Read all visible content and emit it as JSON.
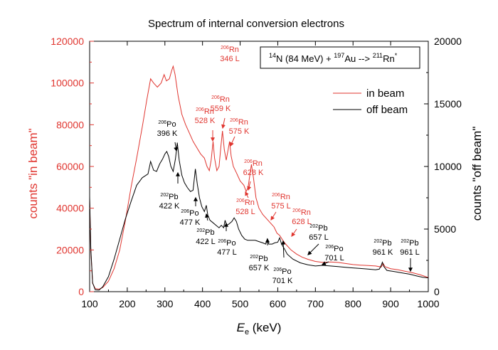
{
  "chart_data": {
    "type": "line",
    "title": "Spectrum of internal conversion electrons",
    "xlabel_main": "E",
    "xlabel_sub": "e",
    "xlabel_unit": " (keV)",
    "ylabel_left": "counts \"in beam\"",
    "ylabel_right": "counts \"off beam\"",
    "xlim": [
      100,
      1000
    ],
    "ylim_left": [
      0,
      120000
    ],
    "ylim_right": [
      0,
      20000
    ],
    "x_ticks": [
      100,
      200,
      300,
      400,
      500,
      600,
      700,
      800,
      900,
      1000
    ],
    "y_left_ticks": [
      0,
      20000,
      40000,
      60000,
      80000,
      100000,
      120000
    ],
    "y_right_ticks": [
      0,
      5000,
      10000,
      15000,
      20000
    ],
    "grid": false,
    "legend_position": "top-right",
    "reaction": {
      "pre1": "14",
      "t1": "N (84 MeV) + ",
      "pre2": "197",
      "t2": "Au --> ",
      "pre3": "211",
      "t3": "Rn",
      "post3": "*"
    },
    "series": [
      {
        "name": "in beam",
        "axis": "left",
        "color": "#e0352f",
        "points": [
          [
            100,
            44000
          ],
          [
            103,
            20000
          ],
          [
            108,
            4000
          ],
          [
            115,
            1500
          ],
          [
            125,
            1200
          ],
          [
            135,
            2000
          ],
          [
            150,
            5000
          ],
          [
            165,
            11000
          ],
          [
            180,
            20000
          ],
          [
            195,
            34000
          ],
          [
            210,
            50000
          ],
          [
            225,
            64000
          ],
          [
            240,
            79000
          ],
          [
            252,
            92000
          ],
          [
            262,
            102000
          ],
          [
            270,
            100000
          ],
          [
            280,
            98000
          ],
          [
            290,
            100000
          ],
          [
            298,
            104000
          ],
          [
            304,
            101000
          ],
          [
            312,
            102000
          ],
          [
            318,
            106000
          ],
          [
            322,
            108000
          ],
          [
            327,
            104000
          ],
          [
            335,
            94000
          ],
          [
            345,
            85000
          ],
          [
            355,
            80000
          ],
          [
            365,
            76000
          ],
          [
            375,
            72000
          ],
          [
            385,
            69000
          ],
          [
            395,
            66000
          ],
          [
            405,
            64000
          ],
          [
            412,
            60000
          ],
          [
            418,
            58000
          ],
          [
            423,
            63000
          ],
          [
            428,
            72000
          ],
          [
            432,
            64000
          ],
          [
            438,
            58000
          ],
          [
            444,
            60000
          ],
          [
            449,
            70000
          ],
          [
            453,
            77000
          ],
          [
            458,
            68000
          ],
          [
            463,
            63000
          ],
          [
            467,
            67000
          ],
          [
            472,
            72000
          ],
          [
            476,
            65000
          ],
          [
            482,
            60000
          ],
          [
            490,
            57000
          ],
          [
            500,
            53000
          ],
          [
            510,
            51000
          ],
          [
            516,
            48000
          ],
          [
            521,
            50000
          ],
          [
            525,
            55000
          ],
          [
            530,
            61000
          ],
          [
            535,
            55000
          ],
          [
            542,
            45000
          ],
          [
            550,
            40000
          ],
          [
            560,
            37000
          ],
          [
            570,
            35000
          ],
          [
            580,
            33000
          ],
          [
            590,
            31000
          ],
          [
            598,
            28000
          ],
          [
            605,
            27000
          ],
          [
            612,
            25000
          ],
          [
            620,
            23000
          ],
          [
            635,
            20000
          ],
          [
            650,
            18000
          ],
          [
            665,
            16500
          ],
          [
            680,
            15500
          ],
          [
            700,
            14500
          ],
          [
            720,
            14000
          ],
          [
            740,
            14200
          ],
          [
            760,
            14000
          ],
          [
            780,
            13500
          ],
          [
            800,
            13000
          ],
          [
            820,
            12700
          ],
          [
            840,
            12500
          ],
          [
            860,
            12300
          ],
          [
            875,
            11800
          ],
          [
            880,
            13500
          ],
          [
            885,
            12000
          ],
          [
            900,
            11000
          ],
          [
            920,
            10500
          ],
          [
            940,
            9700
          ],
          [
            960,
            9000
          ],
          [
            980,
            8000
          ],
          [
            1000,
            6800
          ]
        ]
      },
      {
        "name": "off beam",
        "axis": "right",
        "color": "#000000",
        "points": [
          [
            100,
            7600
          ],
          [
            103,
            3500
          ],
          [
            108,
            700
          ],
          [
            115,
            150
          ],
          [
            125,
            120
          ],
          [
            135,
            400
          ],
          [
            150,
            1200
          ],
          [
            165,
            2600
          ],
          [
            180,
            4200
          ],
          [
            195,
            5800
          ],
          [
            210,
            7200
          ],
          [
            225,
            8500
          ],
          [
            240,
            9100
          ],
          [
            255,
            9400
          ],
          [
            262,
            10400
          ],
          [
            270,
            9700
          ],
          [
            278,
            9600
          ],
          [
            286,
            10200
          ],
          [
            294,
            10600
          ],
          [
            300,
            11000
          ],
          [
            305,
            11200
          ],
          [
            310,
            10800
          ],
          [
            316,
            10000
          ],
          [
            322,
            9600
          ],
          [
            328,
            10600
          ],
          [
            333,
            11900
          ],
          [
            338,
            10500
          ],
          [
            345,
            9300
          ],
          [
            352,
            8700
          ],
          [
            360,
            8300
          ],
          [
            368,
            8000
          ],
          [
            375,
            8100
          ],
          [
            381,
            9800
          ],
          [
            386,
            8600
          ],
          [
            392,
            7500
          ],
          [
            398,
            6800
          ],
          [
            405,
            6400
          ],
          [
            410,
            6900
          ],
          [
            414,
            6100
          ],
          [
            420,
            5700
          ],
          [
            428,
            5500
          ],
          [
            436,
            5300
          ],
          [
            444,
            5100
          ],
          [
            450,
            5300
          ],
          [
            456,
            5100
          ],
          [
            460,
            5700
          ],
          [
            464,
            5300
          ],
          [
            470,
            5400
          ],
          [
            478,
            5600
          ],
          [
            484,
            5900
          ],
          [
            490,
            5600
          ],
          [
            496,
            5000
          ],
          [
            504,
            4500
          ],
          [
            512,
            4200
          ],
          [
            520,
            4100
          ],
          [
            530,
            4100
          ],
          [
            540,
            4100
          ],
          [
            550,
            4000
          ],
          [
            560,
            3900
          ],
          [
            568,
            3800
          ],
          [
            572,
            4200
          ],
          [
            576,
            3800
          ],
          [
            585,
            3800
          ],
          [
            592,
            3900
          ],
          [
            600,
            3950
          ],
          [
            605,
            4300
          ],
          [
            610,
            3800
          ],
          [
            618,
            3400
          ],
          [
            625,
            3000
          ],
          [
            640,
            2600
          ],
          [
            660,
            2300
          ],
          [
            680,
            2150
          ],
          [
            700,
            2050
          ],
          [
            720,
            2100
          ],
          [
            740,
            2050
          ],
          [
            760,
            2000
          ],
          [
            780,
            1950
          ],
          [
            800,
            1900
          ],
          [
            820,
            1850
          ],
          [
            840,
            1800
          ],
          [
            860,
            1750
          ],
          [
            870,
            1800
          ],
          [
            875,
            2100
          ],
          [
            878,
            2350
          ],
          [
            882,
            2000
          ],
          [
            890,
            1700
          ],
          [
            910,
            1600
          ],
          [
            930,
            1500
          ],
          [
            950,
            1400
          ],
          [
            970,
            1250
          ],
          [
            985,
            1150
          ],
          [
            1000,
            1100
          ]
        ]
      }
    ],
    "annotations": [
      {
        "lines": [
          {
            "pre": "206",
            "text": "Rn"
          },
          {
            "pre": "",
            "text": "346 L"
          }
        ],
        "color": "#e0352f",
        "x": 322,
        "arrow": false
      },
      {
        "lines": [
          {
            "pre": "206",
            "text": "Rn"
          },
          {
            "pre": "",
            "text": "528 K"
          }
        ],
        "color": "#e0352f",
        "x": 428,
        "arrow": true
      },
      {
        "lines": [
          {
            "pre": "206",
            "text": "Rn"
          },
          {
            "pre": "",
            "text": "559 K"
          }
        ],
        "color": "#e0352f",
        "x": 453,
        "arrow": true
      },
      {
        "lines": [
          {
            "pre": "206",
            "text": "Rn"
          },
          {
            "pre": "",
            "text": "575 K"
          }
        ],
        "color": "#e0352f",
        "x": 472,
        "arrow": true
      },
      {
        "lines": [
          {
            "pre": "206",
            "text": "Rn"
          },
          {
            "pre": "",
            "text": "628 K"
          }
        ],
        "color": "#e0352f",
        "x": 530,
        "arrow": true
      },
      {
        "lines": [
          {
            "pre": "206",
            "text": "Rn"
          },
          {
            "pre": "",
            "text": "528 L"
          }
        ],
        "color": "#e0352f",
        "x": 516,
        "arrow": true
      },
      {
        "lines": [
          {
            "pre": "206",
            "text": "Rn"
          },
          {
            "pre": "",
            "text": "575 L"
          }
        ],
        "color": "#e0352f",
        "x": 570,
        "arrow": true
      },
      {
        "lines": [
          {
            "pre": "206",
            "text": "Rn"
          },
          {
            "pre": "",
            "text": "628 L"
          }
        ],
        "color": "#e0352f",
        "x": 610,
        "arrow": true
      },
      {
        "lines": [
          {
            "pre": "206",
            "text": "Po"
          },
          {
            "pre": "",
            "text": "396 K"
          }
        ],
        "color": "#000000",
        "x": 305,
        "arrow": true
      },
      {
        "lines": [
          {
            "pre": "202",
            "text": "Pb"
          },
          {
            "pre": "",
            "text": "422 K"
          }
        ],
        "color": "#000000",
        "x": 333,
        "arrow": true
      },
      {
        "lines": [
          {
            "pre": "206",
            "text": "Po"
          },
          {
            "pre": "",
            "text": "477 K"
          }
        ],
        "color": "#000000",
        "x": 381,
        "arrow": true
      },
      {
        "lines": [
          {
            "pre": "202",
            "text": "Pb"
          },
          {
            "pre": "",
            "text": "422 L"
          }
        ],
        "color": "#000000",
        "x": 410,
        "arrow": true
      },
      {
        "lines": [
          {
            "pre": "206",
            "text": "Po"
          },
          {
            "pre": "",
            "text": "477 L"
          }
        ],
        "color": "#000000",
        "x": 460,
        "arrow": true
      },
      {
        "lines": [
          {
            "pre": "202",
            "text": "Pb"
          },
          {
            "pre": "",
            "text": "657 K"
          }
        ],
        "color": "#000000",
        "x": 572,
        "arrow": true
      },
      {
        "lines": [
          {
            "pre": "206",
            "text": "Po"
          },
          {
            "pre": "",
            "text": "701 K"
          }
        ],
        "color": "#000000",
        "x": 605,
        "arrow": true
      },
      {
        "lines": [
          {
            "pre": "202",
            "text": "Pb"
          },
          {
            "pre": "",
            "text": "657 L"
          }
        ],
        "color": "#000000",
        "x": 650,
        "arrow": true
      },
      {
        "lines": [
          {
            "pre": "206",
            "text": "Po"
          },
          {
            "pre": "",
            "text": "701 L"
          }
        ],
        "color": "#000000",
        "x": 685,
        "arrow": true
      },
      {
        "lines": [
          {
            "pre": "202",
            "text": "Pb"
          },
          {
            "pre": "",
            "text": "961 K"
          }
        ],
        "color": "#000000",
        "x": 878,
        "arrow": false
      },
      {
        "lines": [
          {
            "pre": "202",
            "text": "Pb"
          },
          {
            "pre": "",
            "text": "961 L"
          }
        ],
        "color": "#000000",
        "x": 950,
        "arrow": true
      }
    ]
  }
}
